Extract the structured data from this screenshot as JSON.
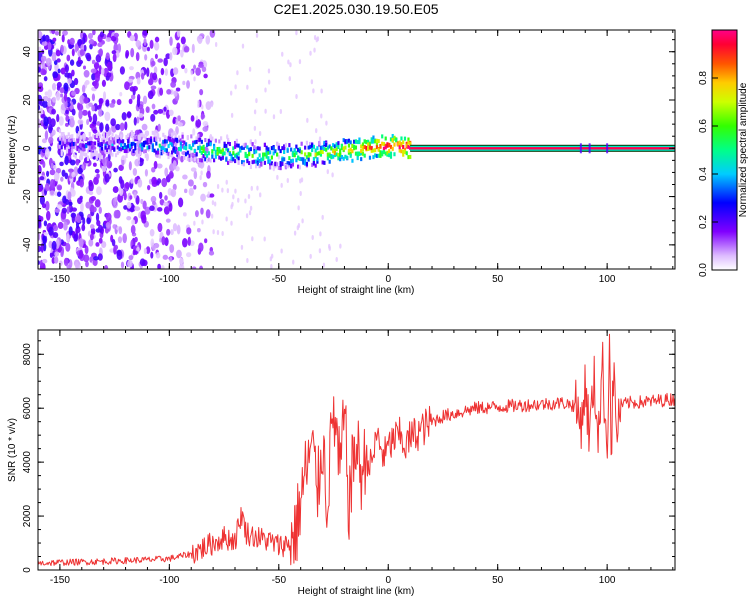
{
  "title": "C2E1.2025.030.19.50.E05",
  "chart_data": [
    {
      "type": "heatmap",
      "xlabel": "Height of straight line (km)",
      "ylabel": "Frequency (Hz)",
      "xlim": [
        -160,
        131
      ],
      "ylim": [
        -50,
        49
      ],
      "xticks": [
        -150,
        -100,
        -50,
        0,
        50,
        100
      ],
      "yticks": [
        -40,
        -20,
        0,
        20,
        40
      ],
      "colorbar": {
        "label": "Normalized spectral amplitude",
        "range": [
          0,
          1
        ],
        "ticks": [
          "0.0",
          "0.2",
          "0.4",
          "0.6",
          "0.8"
        ]
      },
      "ridge": {
        "x": [
          -150,
          -140,
          -130,
          -120,
          -110,
          -100,
          -90,
          -80,
          -70,
          -60,
          -50,
          -40,
          -30,
          -20,
          -10,
          0,
          10,
          30,
          60,
          90,
          130
        ],
        "freq": [
          2,
          1,
          1,
          1,
          1,
          1,
          0,
          -1,
          -2,
          -3,
          -3,
          -3,
          -2,
          -1,
          0,
          1,
          0,
          0,
          0,
          0,
          0
        ],
        "amplitude": [
          0.3,
          0.3,
          0.35,
          0.4,
          0.45,
          0.5,
          0.55,
          0.6,
          0.6,
          0.6,
          0.6,
          0.65,
          0.7,
          0.75,
          0.85,
          0.95,
          1.0,
          1.0,
          1.0,
          1.0,
          1.0
        ]
      },
      "noise_region_end_km": -90
    },
    {
      "type": "line",
      "xlabel": "Height of straight line (km)",
      "ylabel": "SNR (10 * v/v)",
      "xlim": [
        -160,
        131
      ],
      "ylim": [
        0,
        8900
      ],
      "xticks": [
        -150,
        -100,
        -50,
        0,
        50,
        100
      ],
      "yticks": [
        0,
        2000,
        4000,
        6000,
        8000
      ],
      "color": "#ee3333",
      "series": [
        {
          "x": [
            -160,
            -150,
            -140,
            -130,
            -120,
            -110,
            -100,
            -90,
            -85,
            -80,
            -75,
            -70,
            -67,
            -65,
            -60,
            -55,
            -50,
            -45,
            -42,
            -40,
            -38,
            -35,
            -32,
            -30,
            -28,
            -25,
            -22,
            -20,
            -18,
            -15,
            -12,
            -10,
            -8,
            -5,
            -2,
            0,
            2,
            5,
            8,
            10,
            15,
            20,
            25,
            30,
            35,
            40,
            50,
            60,
            70,
            80,
            85,
            88,
            90,
            92,
            94,
            96,
            98,
            100,
            101,
            102,
            103,
            104,
            106,
            110,
            120,
            131
          ],
          "y": [
            250,
            280,
            300,
            320,
            350,
            380,
            420,
            600,
            800,
            1000,
            1200,
            1100,
            2100,
            1400,
            1200,
            1100,
            900,
            1000,
            1500,
            2600,
            3500,
            4500,
            3000,
            5000,
            2500,
            6000,
            3500,
            5800,
            2400,
            4700,
            3500,
            4300,
            3800,
            5000,
            4200,
            4500,
            4800,
            5000,
            4600,
            4900,
            5200,
            5500,
            5700,
            5800,
            5900,
            6000,
            6050,
            6100,
            6150,
            6200,
            6100,
            5500,
            6800,
            5000,
            7000,
            5200,
            7500,
            4300,
            8900,
            4100,
            7900,
            5000,
            6100,
            6200,
            6250,
            6350
          ]
        }
      ]
    }
  ]
}
